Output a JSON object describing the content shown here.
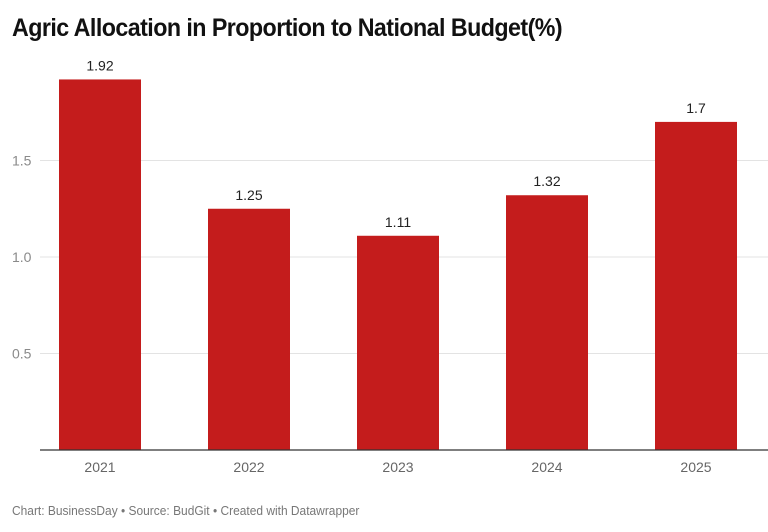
{
  "chart_data": {
    "type": "bar",
    "title": "Agric Allocation in Proportion to National Budget(%)",
    "xlabel": "",
    "ylabel": "",
    "categories": [
      "2021",
      "2022",
      "2023",
      "2024",
      "2025"
    ],
    "values": [
      1.92,
      1.25,
      1.11,
      1.32,
      1.7
    ],
    "data_labels": [
      "1.92",
      "1.25",
      "1.11",
      "1.32",
      "1.7"
    ],
    "ylim": [
      0,
      2.0
    ],
    "yticks": [
      0.5,
      1.0,
      1.5
    ],
    "ytick_labels": [
      "0.5",
      "1.0",
      "1.5"
    ],
    "grid": true,
    "legend": "none",
    "bar_color": "#c41c1c"
  },
  "footer": {
    "text": "Chart: BusinessDay • Source: BudGit • Created with Datawrapper"
  }
}
